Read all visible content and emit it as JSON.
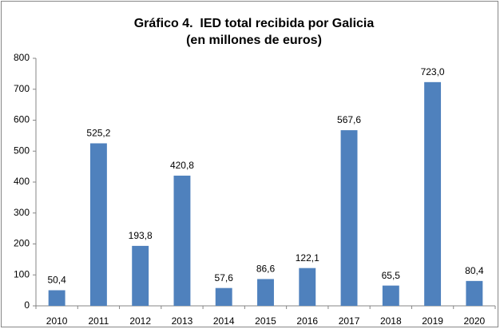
{
  "chart_data": {
    "type": "bar",
    "title": [
      "Gráfico 4.  IED total recibida por Galicia",
      "(en millones de euros)"
    ],
    "categories": [
      "2010",
      "2011",
      "2012",
      "2013",
      "2014",
      "2015",
      "2016",
      "2017",
      "2018",
      "2019",
      "2020"
    ],
    "values": [
      50.4,
      525.2,
      193.8,
      420.8,
      57.6,
      86.6,
      122.1,
      567.6,
      65.5,
      723.0,
      80.4
    ],
    "value_labels": [
      "50,4",
      "525,2",
      "193,8",
      "420,8",
      "57,6",
      "86,6",
      "122,1",
      "567,6",
      "65,5",
      "723,0",
      "80,4"
    ],
    "color": "#4f81bd",
    "ylim": [
      0,
      800
    ],
    "yticks": [
      0,
      100,
      200,
      300,
      400,
      500,
      600,
      700,
      800
    ],
    "grid": false
  }
}
